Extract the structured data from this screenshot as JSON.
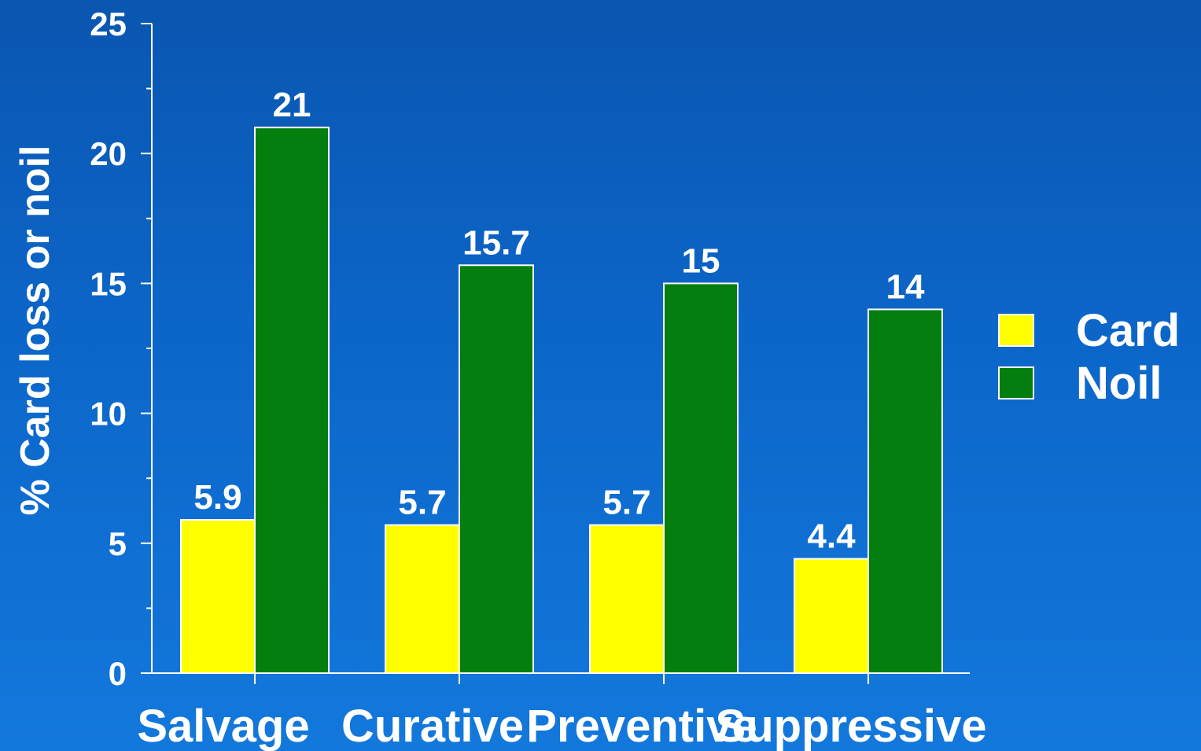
{
  "chart_data": {
    "type": "bar",
    "title": "",
    "xlabel": "",
    "ylabel": "% Card loss or noil",
    "ylim": [
      0,
      25
    ],
    "yticks": [
      0,
      5,
      10,
      15,
      20,
      25
    ],
    "categories": [
      "Salvage",
      "Curative",
      "Preventive",
      "Suppressive"
    ],
    "series": [
      {
        "name": "Card",
        "color": "#ffff00",
        "values": [
          5.9,
          5.7,
          5.7,
          4.4
        ],
        "labels": [
          "5.9",
          "5.7",
          "5.7",
          "4.4"
        ]
      },
      {
        "name": "Noil",
        "color": "#047f0f",
        "values": [
          21,
          15.7,
          15,
          14
        ],
        "labels": [
          "21",
          "15.7",
          "15",
          "14"
        ]
      }
    ],
    "legend_position": "right",
    "grid": false
  }
}
